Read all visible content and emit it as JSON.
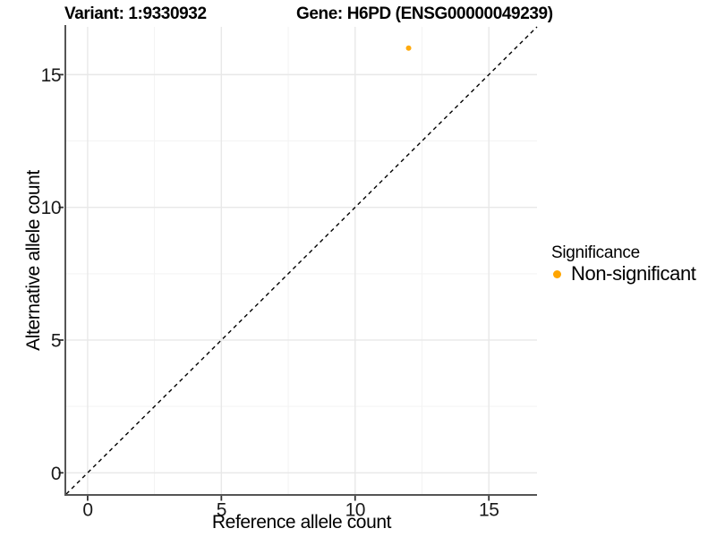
{
  "chart_data": {
    "type": "scatter",
    "title_left": "Variant: 1:9330932",
    "title_right": "Gene: H6PD (ENSG00000049239)",
    "xlabel": "Reference allele count",
    "ylabel": "Alternative allele count",
    "xlim": [
      -0.8,
      16.8
    ],
    "ylim": [
      -0.8,
      16.8
    ],
    "x_ticks": [
      0,
      5,
      10,
      15
    ],
    "y_ticks": [
      0,
      5,
      10,
      15
    ],
    "x_minor_ticks": [
      2.5,
      7.5,
      12.5
    ],
    "y_minor_ticks": [
      2.5,
      7.5,
      12.5
    ],
    "grid": "major+minor",
    "identity_line": {
      "style": "dashed",
      "color": "#000000",
      "from": -0.8,
      "to": 16.8
    },
    "points": [
      {
        "x": 12,
        "y": 16,
        "series": "Non-significant",
        "color": "#FFA500",
        "radius": 3
      }
    ],
    "legend": {
      "title": "Significance",
      "position": "right",
      "entries": [
        {
          "label": "Non-significant",
          "color": "#FFA500",
          "marker": "circle"
        }
      ]
    }
  },
  "colors": {
    "background": "#FFFFFF",
    "point": "#FFA500",
    "grid_major": "#E8E8E8",
    "grid_minor": "#F3F3F3",
    "axis_line": "#555555",
    "tick_mark": "#333333",
    "tick_label": "#1a1a1a",
    "text": "#000000",
    "identity_line": "#000000"
  }
}
